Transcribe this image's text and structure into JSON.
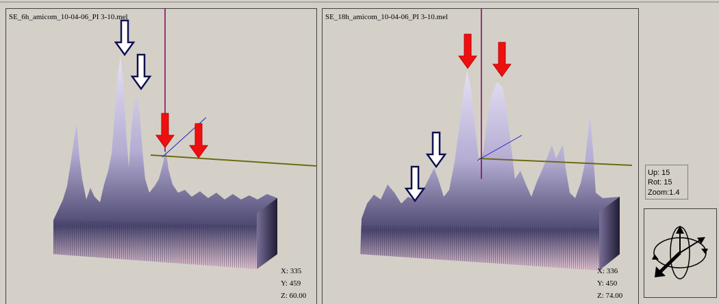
{
  "panels": [
    {
      "title": "SE_6h_amicom_10-04-06_PI 3-10.mel",
      "readout": {
        "x": "X: 335",
        "y": "Y: 459",
        "z": "Z: 60.00"
      }
    },
    {
      "title": "SE_18h_amicom_10-04-06_PI 3-10.mel",
      "readout": {
        "x": "X: 336",
        "y": "Y: 450",
        "z": "Z: 74.00"
      }
    }
  ],
  "view": {
    "up": "Up: 15",
    "rot": "Rot: 15",
    "zoom": "Zoom:1.4"
  }
}
